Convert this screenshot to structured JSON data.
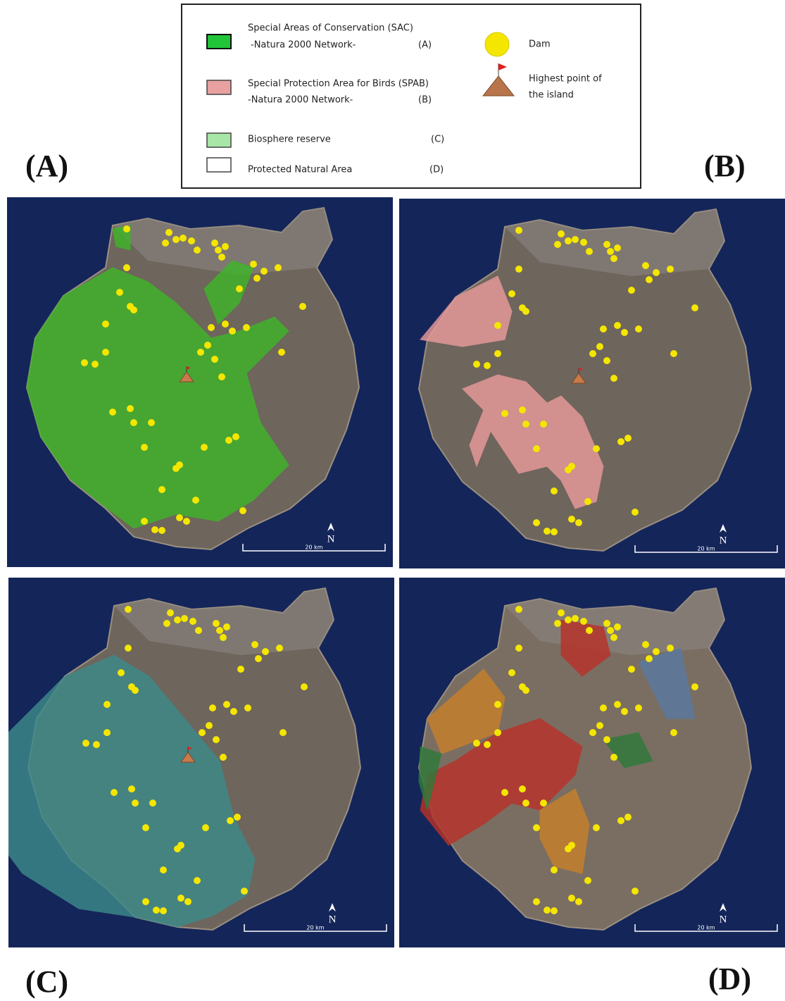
{
  "legend": {
    "sac": {
      "line1": "Special Areas of Conservation (SAC)",
      "line2": "-Natura 2000 Network-",
      "tag": "(A)"
    },
    "spab": {
      "line1": "Special Protection Area for Birds (SPAB)",
      "line2": "-Natura 2000 Network-",
      "tag": "(B)"
    },
    "biosphere": {
      "label": "Biosphere reserve",
      "tag": "(C)"
    },
    "protected": {
      "label": "Protected Natural Area",
      "tag": "(D)"
    },
    "dam": "Dam",
    "highest": [
      "Highest point of",
      "the island"
    ]
  },
  "panels": [
    {
      "label": "(A)",
      "north": "N",
      "scale": "20 km"
    },
    {
      "label": "(B)",
      "north": "N",
      "scale": "20 km"
    },
    {
      "label": "(C)",
      "north": "N",
      "scale": "20 km"
    },
    {
      "label": "(D)",
      "north": "N",
      "scale": "20 km"
    }
  ]
}
